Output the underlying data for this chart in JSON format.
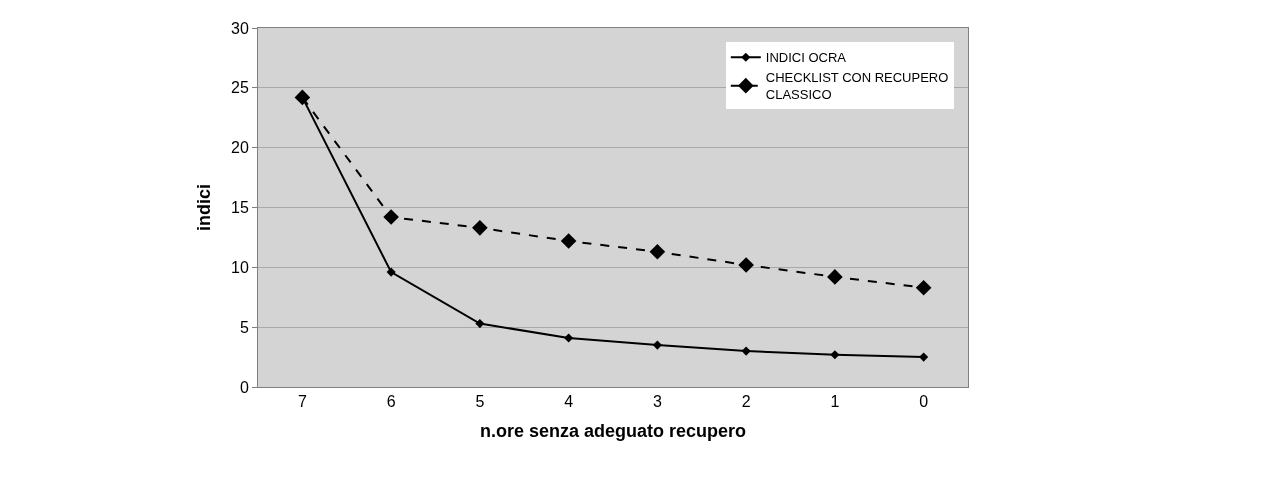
{
  "chart_data": {
    "type": "line",
    "xlabel": "n.ore senza adeguato recupero",
    "ylabel": "indici",
    "categories": [
      "7",
      "6",
      "5",
      "4",
      "3",
      "2",
      "1",
      "0"
    ],
    "series": [
      {
        "name": "INDICI OCRA",
        "color": "#000000",
        "line_style": "solid",
        "values": [
          24.2,
          9.6,
          5.3,
          4.1,
          3.5,
          3.0,
          2.7,
          2.5
        ]
      },
      {
        "name": "CHECKLIST CON RECUPERO CLASSICO",
        "color": "#000000",
        "line_style": "dashed",
        "values": [
          24.2,
          14.2,
          13.3,
          12.2,
          11.3,
          10.2,
          9.2,
          8.3
        ]
      }
    ],
    "ylim": [
      0,
      30
    ],
    "yticks": [
      0,
      5,
      10,
      15,
      20,
      25,
      30
    ],
    "grid": "y",
    "legend": "top right",
    "marker": "diamond"
  }
}
